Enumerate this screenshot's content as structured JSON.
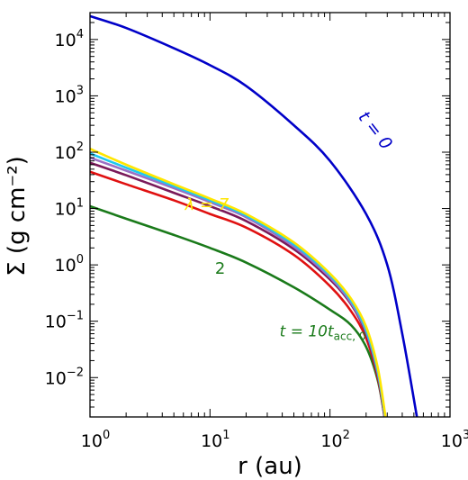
{
  "chart_data": {
    "type": "line",
    "title": "",
    "xlabel": "r (au)",
    "ylabel": "Σ (g cm⁻²)",
    "xscale": "log",
    "yscale": "log",
    "xlim": [
      1,
      1000
    ],
    "ylim": [
      0.002,
      30000
    ],
    "grid": false,
    "legend": "none",
    "x_ticks": [
      {
        "value": 1,
        "mantissa": "10",
        "exponent": "0"
      },
      {
        "value": 10,
        "mantissa": "10",
        "exponent": "1"
      },
      {
        "value": 100,
        "mantissa": "10",
        "exponent": "2"
      },
      {
        "value": 1000,
        "mantissa": "10",
        "exponent": "3"
      }
    ],
    "y_ticks": [
      {
        "value": 0.01,
        "mantissa": "10",
        "exponent": "−2"
      },
      {
        "value": 0.1,
        "mantissa": "10",
        "exponent": "−1"
      },
      {
        "value": 1,
        "mantissa": "10",
        "exponent": "0"
      },
      {
        "value": 10,
        "mantissa": "10",
        "exponent": "1"
      },
      {
        "value": 100,
        "mantissa": "10",
        "exponent": "2"
      },
      {
        "value": 1000,
        "mantissa": "10",
        "exponent": "3"
      },
      {
        "value": 10000,
        "mantissa": "10",
        "exponent": "4"
      }
    ],
    "series": [
      {
        "color": "#0000c8",
        "points": [
          [
            1,
            26000
          ],
          [
            2,
            16000
          ],
          [
            5,
            7000
          ],
          [
            10,
            3500
          ],
          [
            20,
            1500
          ],
          [
            50,
            300
          ],
          [
            100,
            70
          ],
          [
            200,
            8
          ],
          [
            300,
            1
          ],
          [
            400,
            0.06
          ],
          [
            530,
            0.002
          ]
        ]
      },
      {
        "color": "#1a7a1a",
        "points": [
          [
            1,
            11
          ],
          [
            2,
            6.6
          ],
          [
            5,
            3.4
          ],
          [
            10,
            2.0
          ],
          [
            20,
            1.1
          ],
          [
            50,
            0.4
          ],
          [
            100,
            0.16
          ],
          [
            150,
            0.085
          ],
          [
            200,
            0.035
          ],
          [
            250,
            0.009
          ],
          [
            285,
            0.002
          ]
        ]
      },
      {
        "color": "#e01010",
        "points": [
          [
            1,
            45
          ],
          [
            2,
            27
          ],
          [
            5,
            14
          ],
          [
            10,
            8
          ],
          [
            20,
            4.6
          ],
          [
            50,
            1.5
          ],
          [
            100,
            0.42
          ],
          [
            150,
            0.15
          ],
          [
            200,
            0.05
          ],
          [
            250,
            0.01
          ],
          [
            285,
            0.002
          ]
        ]
      },
      {
        "color": "#7a1a5a",
        "points": [
          [
            1,
            65
          ],
          [
            2,
            39
          ],
          [
            5,
            19
          ],
          [
            10,
            11
          ],
          [
            20,
            6
          ],
          [
            50,
            1.9
          ],
          [
            100,
            0.55
          ],
          [
            150,
            0.2
          ],
          [
            200,
            0.06
          ],
          [
            250,
            0.011
          ],
          [
            285,
            0.002
          ]
        ]
      },
      {
        "color": "#9b6fc4",
        "points": [
          [
            1,
            80
          ],
          [
            2,
            47
          ],
          [
            5,
            23
          ],
          [
            10,
            13
          ],
          [
            20,
            7
          ],
          [
            50,
            2.1
          ],
          [
            100,
            0.6
          ],
          [
            150,
            0.21
          ],
          [
            200,
            0.065
          ],
          [
            250,
            0.012
          ],
          [
            287,
            0.002
          ]
        ]
      },
      {
        "color": "#1ec8f0",
        "points": [
          [
            1,
            95
          ],
          [
            2,
            53
          ],
          [
            5,
            25
          ],
          [
            10,
            14
          ],
          [
            20,
            7.5
          ],
          [
            50,
            2.3
          ],
          [
            100,
            0.65
          ],
          [
            150,
            0.23
          ],
          [
            200,
            0.07
          ],
          [
            250,
            0.013
          ],
          [
            288,
            0.002
          ]
        ]
      },
      {
        "color": "#ffe600",
        "points": [
          [
            1,
            115
          ],
          [
            2,
            60
          ],
          [
            5,
            27
          ],
          [
            10,
            15
          ],
          [
            20,
            8
          ],
          [
            50,
            2.5
          ],
          [
            100,
            0.7
          ],
          [
            150,
            0.25
          ],
          [
            200,
            0.08
          ],
          [
            250,
            0.015
          ],
          [
            290,
            0.002
          ]
        ]
      }
    ],
    "annotations": [
      {
        "key": "t0",
        "color": "#0000c8",
        "at": [
          170,
          420
        ],
        "rotation": 52
      },
      {
        "key": "lambda",
        "color": "#ffe600",
        "at": [
          6.2,
          9.5
        ],
        "rotation": 0
      },
      {
        "key": "two",
        "color": "#1a7a1a",
        "at": [
          11,
          0.7
        ],
        "rotation": 0
      },
      {
        "key": "tacc",
        "color": "#1a7a1a",
        "at": [
          38,
          0.054
        ],
        "rotation": 0
      }
    ]
  },
  "labels": {
    "t0": "t = 0",
    "lambda": "λ = 7",
    "two": "2",
    "tacc_prefix": "t = 10t",
    "tacc_sub": "acc, 0"
  }
}
